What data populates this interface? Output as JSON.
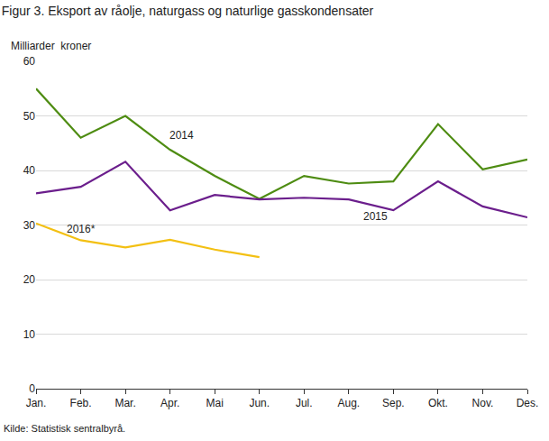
{
  "chart_data": {
    "type": "line",
    "title": "Figur 3. Eksport av råolje, naturgass og naturlige gasskondensater",
    "y_label": "Milliarder  kroner",
    "source": "Kilde: Statistisk sentralbyrå.",
    "categories": [
      "Jan.",
      "Feb.",
      "Mar.",
      "Apr.",
      "Mai",
      "Jun.",
      "Jul.",
      "Aug.",
      "Sep.",
      "Okt.",
      "Nov.",
      "Des."
    ],
    "series": [
      {
        "name": "2014",
        "color": "#4e8c12",
        "values": [
          55,
          46,
          50,
          43.8,
          39,
          34.8,
          39,
          37.6,
          38,
          48.5,
          40.2,
          42
        ]
      },
      {
        "name": "2015",
        "color": "#6b1e8c",
        "values": [
          35.8,
          37,
          41.6,
          32.7,
          35.5,
          34.7,
          35,
          34.7,
          32.7,
          38,
          33.4,
          31.4
        ]
      },
      {
        "name": "2016*",
        "color": "#f3c013",
        "values": [
          30.3,
          27.2,
          25.9,
          27.3,
          25.5,
          24.1,
          null,
          null,
          null,
          null,
          null,
          null
        ]
      }
    ],
    "ylim": [
      0,
      60
    ],
    "yticks": [
      0,
      10,
      20,
      30,
      40,
      50,
      60
    ],
    "grid": true
  }
}
